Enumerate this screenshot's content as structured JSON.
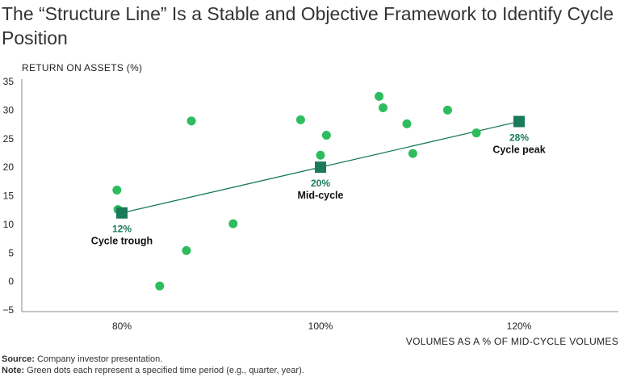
{
  "title": "The “Structure Line” Is a Stable and Objective Framework to Identify Cycle Position",
  "chart_data": {
    "type": "scatter",
    "ylabel": "RETURN ON ASSETS (%)",
    "xlabel": "VOLUMES AS A % OF MID-CYCLE VOLUMES",
    "xlim": [
      70,
      130
    ],
    "ylim": [
      -5,
      35
    ],
    "x_ticks": [
      80,
      100,
      120
    ],
    "x_tick_labels": [
      "80%",
      "100%",
      "120%"
    ],
    "y_ticks": [
      -5,
      0,
      5,
      10,
      15,
      20,
      25,
      30,
      35
    ],
    "y_tick_labels": [
      "−5",
      "0",
      "5",
      "10",
      "15",
      "20",
      "25",
      "30",
      "35"
    ],
    "colors": {
      "dots": "#2dbd5f",
      "markers": "#1a7a5a",
      "line": "#1a7a5a",
      "axis": "#888888"
    },
    "points": [
      {
        "x": 79.5,
        "y": 16.0
      },
      {
        "x": 79.6,
        "y": 12.6
      },
      {
        "x": 83.8,
        "y": -0.8
      },
      {
        "x": 86.5,
        "y": 5.4
      },
      {
        "x": 87.0,
        "y": 28.1
      },
      {
        "x": 91.2,
        "y": 10.1
      },
      {
        "x": 98.0,
        "y": 28.3
      },
      {
        "x": 100.0,
        "y": 22.1
      },
      {
        "x": 100.6,
        "y": 25.6
      },
      {
        "x": 105.9,
        "y": 32.4
      },
      {
        "x": 106.3,
        "y": 30.4
      },
      {
        "x": 108.7,
        "y": 27.6
      },
      {
        "x": 109.3,
        "y": 22.4
      },
      {
        "x": 112.8,
        "y": 30.0
      },
      {
        "x": 115.7,
        "y": 26.0
      }
    ],
    "structure_line": [
      {
        "x": 80,
        "y": 12,
        "value_label": "12%",
        "name": "Cycle trough"
      },
      {
        "x": 100,
        "y": 20,
        "value_label": "20%",
        "name": "Mid-cycle"
      },
      {
        "x": 120,
        "y": 28,
        "value_label": "28%",
        "name": "Cycle peak"
      }
    ]
  },
  "footnotes": {
    "source_label": "Source:",
    "source_text": " Company investor presentation.",
    "note_label": "Note:",
    "note_text": " Green dots each represent a specified time period (e.g., quarter, year)."
  }
}
